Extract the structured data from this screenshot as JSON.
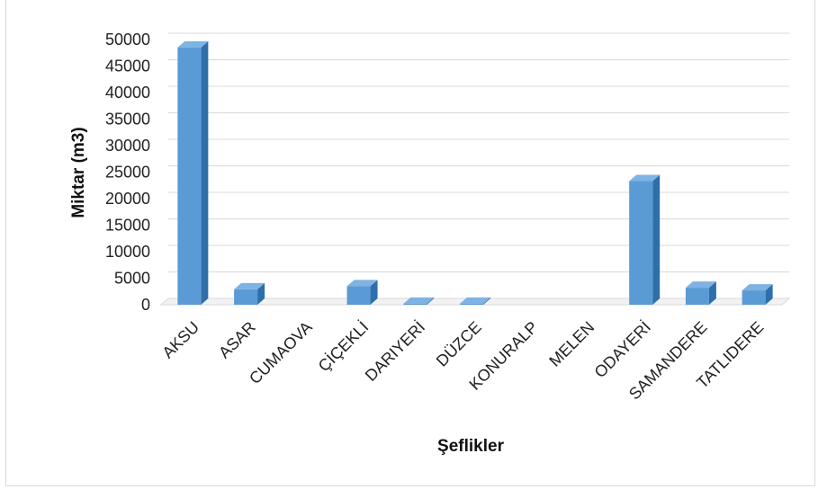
{
  "chart_data": {
    "type": "bar",
    "title": "",
    "xlabel": "Şeflikler",
    "ylabel": "Miktar (m3)",
    "categories": [
      "AKSU",
      "ASAR",
      "CUMAOVA",
      "ÇİÇEKLİ",
      "DARIYERİ",
      "DÜZCE",
      "KONURALP",
      "MELEN",
      "ODAYERİ",
      "SAMANDERE",
      "TATLIDERE"
    ],
    "values": [
      48500,
      2900,
      0,
      3500,
      200,
      200,
      0,
      0,
      23300,
      3200,
      2700
    ],
    "ylim": [
      0,
      50000
    ],
    "yticks": [
      "0",
      "5000",
      "10000",
      "15000",
      "20000",
      "25000",
      "30000",
      "35000",
      "40000",
      "45000",
      "50000"
    ],
    "grid": true,
    "legend": "none",
    "style": "3d-column"
  },
  "colors": {
    "bar_front": "#5B9BD5",
    "bar_side": "#2E6FAB",
    "bar_top": "#7EB3E3",
    "grid": "#d9d9d9"
  }
}
